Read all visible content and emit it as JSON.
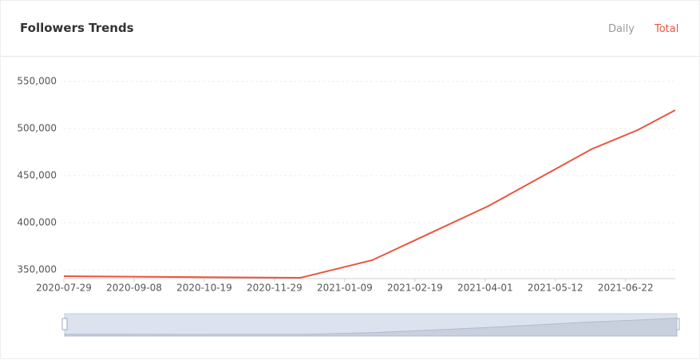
{
  "header": {
    "title": "Followers Trends",
    "tabs": [
      "Daily",
      "Total"
    ],
    "active_tab": 1
  },
  "chart_data": {
    "type": "line",
    "x": [
      "2020-07-29",
      "2020-12-14",
      "2021-01-25",
      "2021-04-03",
      "2021-06-02",
      "2021-06-29",
      "2021-07-21"
    ],
    "series": [
      {
        "name": "Total",
        "color": "#e8553e",
        "values": [
          343200,
          341500,
          360200,
          417800,
          478000,
          498300,
          519500
        ]
      }
    ],
    "xlim": [
      "2020-07-29",
      "2021-07-21"
    ],
    "xticks": [
      "2020-07-29",
      "2020-09-08",
      "2020-10-19",
      "2020-11-29",
      "2021-01-09",
      "2021-02-19",
      "2021-04-01",
      "2021-05-12",
      "2021-06-22"
    ],
    "ylim": [
      340700,
      550000
    ],
    "yticks": [
      {
        "value": 350000,
        "label": "350,000"
      },
      {
        "value": 400000,
        "label": "400,000"
      },
      {
        "value": 450000,
        "label": "450,000"
      },
      {
        "value": 500000,
        "label": "500,000"
      },
      {
        "value": 550000,
        "label": "550,000"
      }
    ],
    "grid": true
  }
}
